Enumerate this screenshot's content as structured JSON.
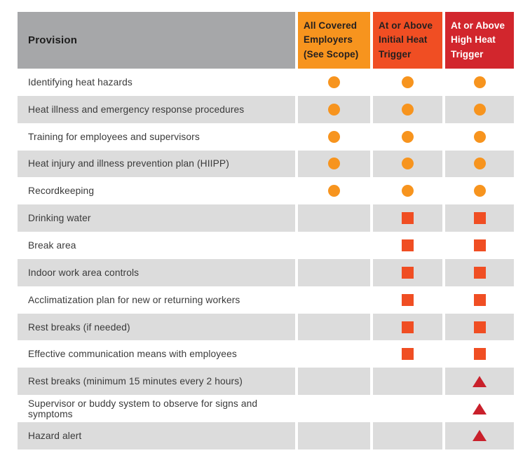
{
  "table": {
    "header": {
      "provision_label": "Provision",
      "provision_bg": "#A6A7A9",
      "columns": [
        {
          "label": "All Covered Employers (See Scope)",
          "bg": "#F7941E",
          "text_color": "#231F20"
        },
        {
          "label": "At or Above Initial Heat Trigger",
          "bg": "#F04E23",
          "text_color": "#231F20"
        },
        {
          "label": "At or Above High Heat Trigger",
          "bg": "#D2262D",
          "text_color": "#FFFFFF"
        }
      ]
    },
    "marker_colors": {
      "circle": "#F7941E",
      "square": "#F04E23",
      "triangle": "#C9202B"
    },
    "colors": {
      "row_gray": "#DCDCDC",
      "row_white": "#FFFFFF",
      "label_text": "#3A3A3A"
    },
    "rows": [
      {
        "provision": "Identifying heat hazards",
        "markers": [
          "circle",
          "circle",
          "circle"
        ]
      },
      {
        "provision": "Heat illness and emergency response procedures",
        "markers": [
          "circle",
          "circle",
          "circle"
        ]
      },
      {
        "provision": "Training for employees and supervisors",
        "markers": [
          "circle",
          "circle",
          "circle"
        ]
      },
      {
        "provision": "Heat injury and illness prevention plan (HIIPP)",
        "markers": [
          "circle",
          "circle",
          "circle"
        ]
      },
      {
        "provision": "Recordkeeping",
        "markers": [
          "circle",
          "circle",
          "circle"
        ]
      },
      {
        "provision": "Drinking water",
        "markers": [
          "none",
          "square",
          "square"
        ]
      },
      {
        "provision": "Break area",
        "markers": [
          "none",
          "square",
          "square"
        ]
      },
      {
        "provision": "Indoor work area controls",
        "markers": [
          "none",
          "square",
          "square"
        ]
      },
      {
        "provision": "Acclimatization plan for new or returning workers",
        "markers": [
          "none",
          "square",
          "square"
        ]
      },
      {
        "provision": "Rest breaks (if needed)",
        "markers": [
          "none",
          "square",
          "square"
        ]
      },
      {
        "provision": "Effective communication means with employees",
        "markers": [
          "none",
          "square",
          "square"
        ]
      },
      {
        "provision": "Rest breaks (minimum 15 minutes every 2 hours)",
        "markers": [
          "none",
          "none",
          "triangle"
        ]
      },
      {
        "provision": "Supervisor or buddy system to observe for signs and symptoms",
        "markers": [
          "none",
          "none",
          "triangle"
        ]
      },
      {
        "provision": "Hazard alert",
        "markers": [
          "none",
          "none",
          "triangle"
        ]
      }
    ]
  },
  "chart_data": {
    "type": "table",
    "columns": [
      "Provision",
      "All Covered Employers (See Scope)",
      "At or Above Initial Heat Trigger",
      "At or Above High Heat Trigger"
    ],
    "rows": [
      [
        "Identifying heat hazards",
        "circle",
        "circle",
        "circle"
      ],
      [
        "Heat illness and emergency response procedures",
        "circle",
        "circle",
        "circle"
      ],
      [
        "Training for employees and supervisors",
        "circle",
        "circle",
        "circle"
      ],
      [
        "Heat injury and illness prevention plan (HIIPP)",
        "circle",
        "circle",
        "circle"
      ],
      [
        "Recordkeeping",
        "circle",
        "circle",
        "circle"
      ],
      [
        "Drinking water",
        "",
        "square",
        "square"
      ],
      [
        "Break area",
        "",
        "square",
        "square"
      ],
      [
        "Indoor work area controls",
        "",
        "square",
        "square"
      ],
      [
        "Acclimatization plan for new or returning workers",
        "",
        "square",
        "square"
      ],
      [
        "Rest breaks (if needed)",
        "",
        "square",
        "square"
      ],
      [
        "Effective communication means with employees",
        "",
        "square",
        "square"
      ],
      [
        "Rest breaks (minimum 15 minutes every 2 hours)",
        "",
        "",
        "triangle"
      ],
      [
        "Supervisor or buddy system to observe for signs and symptoms",
        "",
        "",
        "triangle"
      ],
      [
        "Hazard alert",
        "",
        "",
        "triangle"
      ]
    ],
    "marker_styles": {
      "circle": {
        "shape": "circle",
        "color": "#F7941E"
      },
      "square": {
        "shape": "square",
        "color": "#F04E23"
      },
      "triangle": {
        "shape": "triangle",
        "color": "#C9202B"
      }
    },
    "layout": {
      "alternating_rows": true,
      "header_colors": [
        "#A6A7A9",
        "#F7941E",
        "#F04E23",
        "#D2262D"
      ]
    }
  }
}
